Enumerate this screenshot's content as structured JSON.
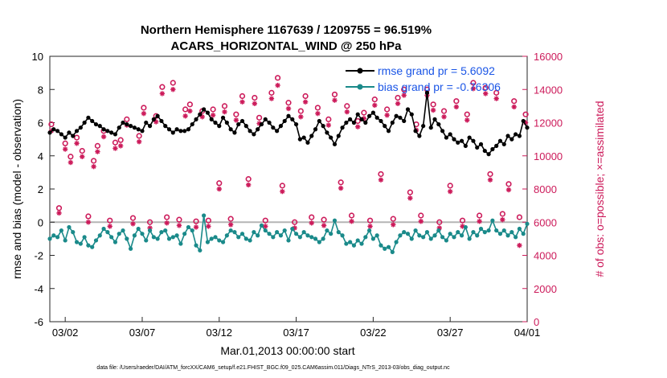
{
  "chart_data": {
    "type": "line",
    "title": "Northern Hemisphere 1167639 / 1209755 = 96.519%",
    "subtitle": "ACARS_HORIZONTAL_WIND @ 250 hPa",
    "xlabel": "Mar.01,2013 00:00:00 start",
    "ylabel": "rmse and bias (model - observation)",
    "y2label": "# of obs: o=possible; ×=assimilated",
    "xlim": [
      0,
      31
    ],
    "ylim": [
      -6,
      10
    ],
    "y2lim": [
      0,
      16000
    ],
    "x_ticks": [
      1,
      6,
      11,
      16,
      21,
      26,
      31
    ],
    "x_tick_labels": [
      "03/02",
      "03/07",
      "03/12",
      "03/17",
      "03/22",
      "03/27",
      "04/01"
    ],
    "y_ticks": [
      -6,
      -4,
      -2,
      0,
      2,
      4,
      6,
      8,
      10
    ],
    "y2_ticks": [
      0,
      2000,
      4000,
      6000,
      8000,
      10000,
      12000,
      14000,
      16000
    ],
    "zero_line": 0,
    "legend": [
      "rmse grand pr = 5.6092",
      "bias grand pr = -0.76306"
    ],
    "colors": {
      "rmse": "#000000",
      "bias": "#1a8a8a",
      "obs": "#cc1a5a",
      "legend_text": "#1a55e6",
      "zero_line": "#b5b5b5"
    },
    "x": [
      0.0,
      0.25,
      0.5,
      0.75,
      1.0,
      1.25,
      1.5,
      1.75,
      2.0,
      2.25,
      2.5,
      2.75,
      3.0,
      3.25,
      3.5,
      3.75,
      4.0,
      4.25,
      4.5,
      4.75,
      5.0,
      5.25,
      5.5,
      5.75,
      6.0,
      6.25,
      6.5,
      6.75,
      7.0,
      7.25,
      7.5,
      7.75,
      8.0,
      8.25,
      8.5,
      8.75,
      9.0,
      9.25,
      9.5,
      9.75,
      10.0,
      10.25,
      10.5,
      10.75,
      11.0,
      11.25,
      11.5,
      11.75,
      12.0,
      12.25,
      12.5,
      12.75,
      13.0,
      13.25,
      13.5,
      13.75,
      14.0,
      14.25,
      14.5,
      14.75,
      15.0,
      15.25,
      15.5,
      15.75,
      16.0,
      16.25,
      16.5,
      16.75,
      17.0,
      17.25,
      17.5,
      17.75,
      18.0,
      18.25,
      18.5,
      18.75,
      19.0,
      19.25,
      19.5,
      19.75,
      20.0,
      20.25,
      20.5,
      20.75,
      21.0,
      21.25,
      21.5,
      21.75,
      22.0,
      22.25,
      22.5,
      22.75,
      23.0,
      23.25,
      23.5,
      23.75,
      24.0,
      24.25,
      24.5,
      24.75,
      25.0,
      25.25,
      25.5,
      25.75,
      26.0,
      26.25,
      26.5,
      26.75,
      27.0,
      27.25,
      27.5,
      27.75,
      28.0,
      28.25,
      28.5,
      28.75,
      29.0,
      29.25,
      29.5,
      29.75,
      30.0,
      30.25,
      30.5,
      30.75,
      31.0
    ],
    "series": [
      {
        "name": "rmse",
        "values": [
          5.4,
          5.6,
          5.5,
          5.3,
          5.1,
          5.4,
          5.2,
          5.5,
          5.7,
          6.0,
          6.3,
          6.1,
          5.9,
          5.8,
          5.6,
          5.5,
          5.4,
          5.3,
          5.7,
          6.0,
          5.9,
          5.8,
          5.7,
          5.6,
          5.5,
          6.0,
          5.8,
          6.2,
          6.4,
          6.1,
          5.8,
          5.6,
          5.4,
          5.6,
          5.5,
          5.5,
          5.6,
          5.9,
          6.2,
          6.5,
          6.8,
          6.6,
          6.2,
          6.0,
          5.8,
          6.3,
          6.0,
          5.6,
          5.4,
          5.9,
          6.1,
          5.8,
          5.5,
          5.3,
          5.6,
          5.9,
          6.2,
          6.0,
          5.7,
          5.5,
          5.8,
          6.1,
          6.4,
          6.2,
          5.9,
          5.0,
          5.1,
          4.8,
          5.2,
          5.6,
          6.1,
          5.8,
          5.4,
          5.1,
          4.7,
          5.2,
          5.7,
          6.0,
          6.2,
          6.0,
          6.5,
          6.2,
          6.0,
          6.4,
          6.6,
          6.3,
          6.1,
          5.8,
          5.5,
          6.0,
          6.4,
          6.3,
          6.1,
          6.8,
          6.5,
          5.5,
          5.2,
          5.8,
          7.8,
          5.7,
          6.2,
          5.9,
          5.5,
          5.1,
          5.3,
          5.0,
          4.8,
          4.9,
          4.6,
          5.1,
          4.9,
          4.5,
          4.7,
          4.3,
          4.1,
          4.4,
          4.6,
          4.9,
          4.7,
          5.2,
          5.0,
          5.3,
          5.2,
          6.1,
          5.7
        ],
        "bias": null
      },
      {
        "name": "bias",
        "values": [
          -1.0,
          -0.8,
          -0.9,
          -0.5,
          -1.1,
          -0.3,
          -0.6,
          -1.2,
          -1.3,
          -0.9,
          -1.4,
          -1.5,
          -1.1,
          -0.8,
          -0.4,
          -0.6,
          -0.9,
          -1.2,
          -0.7,
          -0.5,
          -1.0,
          -1.6,
          -0.8,
          -0.4,
          -0.7,
          -1.1,
          -0.5,
          -0.9,
          -1.0,
          -0.6,
          -0.5,
          -1.0,
          -0.9,
          -0.8,
          -1.3,
          -0.7,
          -0.3,
          -0.5,
          -1.4,
          -1.7,
          0.4,
          -1.2,
          -1.0,
          -0.9,
          -1.1,
          -1.2,
          -0.8,
          -0.5,
          -0.6,
          -0.9,
          -0.7,
          -1.0,
          -1.1,
          -0.6,
          -0.8,
          -0.2,
          -0.5,
          -0.7,
          -0.9,
          -0.6,
          -0.8,
          -0.5,
          -1.1,
          -0.4,
          -0.7,
          -0.9,
          -0.6,
          -0.8,
          -0.9,
          -1.0,
          -1.2,
          -1.0,
          -0.5,
          -0.7,
          0.1,
          -0.6,
          -0.8,
          -1.3,
          -1.2,
          -1.4,
          -1.1,
          -1.3,
          -0.9,
          -0.5,
          -1.0,
          -0.8,
          -1.4,
          -1.6,
          -1.5,
          -1.8,
          -1.2,
          -0.8,
          -0.6,
          -0.7,
          -1.0,
          -0.5,
          -0.8,
          -0.9,
          -0.6,
          -1.0,
          -0.8,
          -0.5,
          -0.9,
          -1.1,
          -0.7,
          -0.9,
          -0.6,
          -0.8,
          -0.3,
          -1.0,
          -0.6,
          -0.8,
          -0.4,
          -0.6,
          -0.5,
          0.1,
          -0.5,
          -0.7,
          -0.5,
          -0.8,
          -0.6,
          -0.9,
          -0.4,
          -0.7,
          -0.1
        ]
      },
      {
        "name": "obs_possible",
        "x": [
          0.1,
          0.6,
          1.0,
          1.35,
          1.75,
          2.1,
          2.5,
          2.85,
          3.1,
          3.5,
          3.9,
          4.25,
          4.6,
          5.0,
          5.4,
          5.8,
          6.1,
          6.5,
          6.9,
          7.3,
          7.6,
          8.0,
          8.4,
          8.8,
          9.1,
          9.5,
          9.9,
          10.3,
          10.6,
          11.0,
          11.35,
          11.75,
          12.1,
          12.5,
          12.9,
          13.3,
          13.6,
          14.0,
          14.4,
          14.8,
          15.1,
          15.5,
          15.9,
          16.3,
          16.6,
          17.0,
          17.4,
          17.8,
          18.1,
          18.5,
          18.9,
          19.3,
          19.6,
          20.0,
          20.4,
          20.8,
          21.1,
          21.5,
          21.9,
          22.3,
          22.6,
          23.0,
          23.4,
          23.8,
          24.1,
          24.5,
          24.9,
          25.3,
          25.6,
          26.0,
          26.4,
          26.8,
          27.1,
          27.5,
          27.9,
          28.3,
          28.6,
          29.0,
          29.4,
          29.8,
          30.15,
          30.5,
          30.9
        ],
        "values": [
          11900,
          6850,
          10750,
          9950,
          11100,
          10300,
          6350,
          9700,
          10600,
          11500,
          6100,
          10800,
          10950,
          12200,
          6250,
          11200,
          12900,
          6000,
          12400,
          14150,
          6300,
          14400,
          6150,
          12800,
          13100,
          6050,
          12700,
          6100,
          12800,
          8350,
          13000,
          6200,
          12500,
          13600,
          8600,
          13500,
          12300,
          6100,
          13800,
          14700,
          8200,
          13200,
          6000,
          12700,
          13600,
          6300,
          12900,
          6150,
          12200,
          13700,
          8400,
          13000,
          6400,
          12100,
          12600,
          6100,
          13400,
          8900,
          12800,
          6200,
          13500,
          14000,
          7800,
          11900,
          6400,
          14000,
          13100,
          6000,
          12700,
          8200,
          13300,
          6100,
          12500,
          14400,
          6400,
          14100,
          8900,
          13800,
          6500,
          8300,
          13300,
          6300,
          12500
        ]
      },
      {
        "name": "obs_assimilated",
        "x": [
          0.1,
          0.6,
          1.0,
          1.35,
          1.75,
          2.1,
          2.5,
          2.85,
          3.1,
          3.5,
          3.9,
          4.25,
          4.6,
          5.0,
          5.4,
          5.8,
          6.1,
          6.5,
          6.9,
          7.3,
          7.6,
          8.0,
          8.4,
          8.8,
          9.1,
          9.5,
          9.9,
          10.3,
          10.6,
          11.0,
          11.35,
          11.75,
          12.1,
          12.5,
          12.9,
          13.3,
          13.6,
          14.0,
          14.4,
          14.8,
          15.1,
          15.5,
          15.9,
          16.3,
          16.6,
          17.0,
          17.4,
          17.8,
          18.1,
          18.5,
          18.9,
          19.3,
          19.6,
          20.0,
          20.4,
          20.8,
          21.1,
          21.5,
          21.9,
          22.3,
          22.6,
          23.0,
          23.4,
          23.8,
          24.1,
          24.5,
          24.9,
          25.3,
          25.6,
          26.0,
          26.4,
          26.8,
          27.1,
          27.5,
          27.9,
          28.3,
          28.6,
          29.0,
          29.4,
          29.8,
          30.15,
          30.5,
          30.9
        ],
        "values": [
          11500,
          6550,
          10400,
          9600,
          10750,
          9950,
          6000,
          9350,
          10250,
          11150,
          5750,
          10450,
          10600,
          11850,
          5900,
          10850,
          12550,
          5650,
          12050,
          13750,
          5950,
          14000,
          5800,
          12400,
          12700,
          5700,
          12350,
          5750,
          12450,
          8000,
          12650,
          5850,
          12150,
          13250,
          8250,
          13150,
          11950,
          5750,
          13450,
          14250,
          7850,
          12850,
          5650,
          12350,
          13250,
          5950,
          12550,
          5800,
          11850,
          13350,
          8050,
          12650,
          6050,
          11750,
          12250,
          5750,
          13050,
          8550,
          12450,
          5850,
          13150,
          13650,
          7450,
          11550,
          6050,
          13650,
          12750,
          5650,
          12350,
          7850,
          12950,
          5750,
          12150,
          14050,
          6050,
          13750,
          8550,
          13450,
          6150,
          7950,
          12950,
          4600,
          12000
        ]
      }
    ]
  },
  "footer": {
    "data_file": "data file: /Users/raeder/DAI/ATM_forcXX/CAM6_setup/f.e21.FHIST_BGC.f09_025.CAM6assim.011/Diags_NTrS_2013-03/obs_diag_output.nc"
  }
}
